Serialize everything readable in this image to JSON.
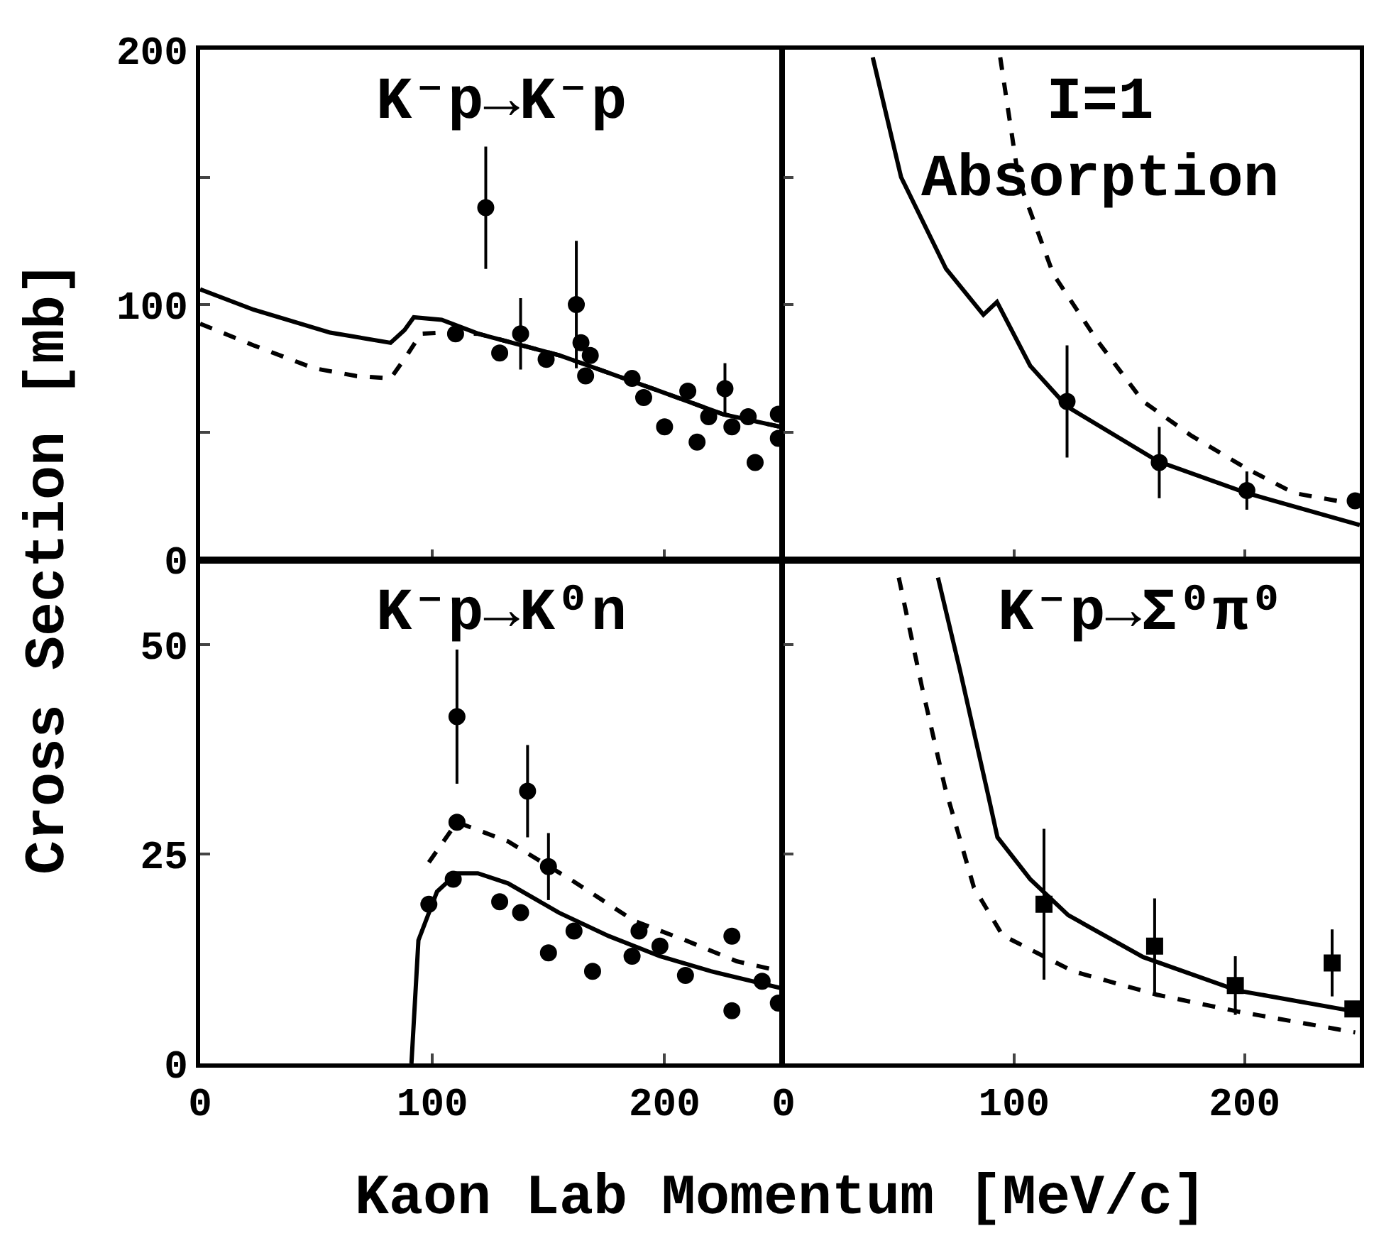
{
  "chart_data": [
    {
      "type": "line",
      "title": "K⁻p→K⁻p",
      "ylabel": "Cross Section [mb]",
      "xlim": [
        0,
        250
      ],
      "xticks": [
        0,
        100,
        200
      ],
      "ylim": [
        0,
        200
      ],
      "yticks": [
        0,
        {
          "value": 50,
          "label": null
        },
        100,
        {
          "value": 150,
          "label": null
        },
        200
      ],
      "tick_labels": "y",
      "series": [
        {
          "line_style": "solid",
          "marker": "none",
          "color": "#000000",
          "x": [
            0,
            23,
            56,
            82,
            88,
            92,
            104,
            120,
            155,
            198,
            225,
            250
          ],
          "values": [
            106,
            98,
            89,
            85,
            90,
            95,
            94,
            88.5,
            80,
            66,
            57,
            52
          ]
        },
        {
          "line_style": "dashed",
          "marker": "none",
          "color": "#000000",
          "x": [
            0,
            23,
            49,
            67,
            82,
            89,
            95,
            104,
            120,
            155,
            198,
            225,
            250
          ],
          "values": [
            92.5,
            84,
            75,
            72,
            71,
            80,
            88.5,
            89,
            88.5,
            80,
            66,
            57,
            52
          ]
        },
        {
          "type": "scatter",
          "marker": "circle",
          "color": "#000000",
          "x": [
            123,
            110,
            129,
            138,
            149,
            162,
            164,
            168,
            166,
            186,
            191,
            200,
            210,
            214,
            219,
            226,
            229,
            236,
            239,
            249,
            249
          ],
          "values": [
            138,
            88.5,
            81,
            88.5,
            78.5,
            100,
            85,
            80,
            72,
            71,
            63.5,
            52,
            66,
            46,
            56,
            67,
            52,
            56,
            38,
            57,
            47.5
          ],
          "errors": [
            24,
            null,
            null,
            14,
            null,
            25,
            null,
            null,
            null,
            null,
            null,
            null,
            null,
            null,
            null,
            10,
            null,
            null,
            null,
            null,
            null
          ]
        }
      ]
    },
    {
      "type": "line",
      "title": "I=1\nAbsorption",
      "xlim": [
        0,
        250
      ],
      "xticks": [
        0,
        100,
        200
      ],
      "ylim": [
        0,
        200
      ],
      "yticks": [
        {
          "value": 0,
          "label": null
        },
        {
          "value": 50,
          "label": null
        },
        {
          "value": 100,
          "label": null
        },
        {
          "value": 150,
          "label": null
        },
        {
          "value": 200,
          "label": null
        }
      ],
      "tick_labels": false,
      "series": [
        {
          "line_style": "solid",
          "marker": "none",
          "color": "#000000",
          "x": [
            38.7,
            51,
            70.5,
            86.7,
            92.6,
            107,
            123,
            162.6,
            201,
            250
          ],
          "values": [
            197,
            150,
            114,
            96,
            101,
            76,
            60,
            38.4,
            26,
            13.5
          ]
        },
        {
          "line_style": "dashed",
          "marker": "none",
          "color": "#000000",
          "x": [
            94,
            102,
            117,
            136,
            156,
            177,
            201,
            221.5,
            248
          ],
          "values": [
            197,
            149,
            112,
            86,
            62,
            48.5,
            35.6,
            26,
            21.7
          ]
        },
        {
          "type": "scatter",
          "marker": "circle",
          "color": "#000000",
          "x": [
            123,
            163,
            201,
            248
          ],
          "values": [
            62,
            38,
            27,
            23
          ],
          "errors": [
            22,
            14,
            7.5,
            null
          ]
        }
      ]
    },
    {
      "type": "line",
      "title": "K⁻p→K⁰n",
      "xlabel": "Kaon Lab Momentum [MeV/c]",
      "xlim": [
        0,
        250
      ],
      "xticks": [
        0,
        100,
        200
      ],
      "ylim": [
        0,
        60
      ],
      "yticks": [
        0,
        25,
        50
      ],
      "series": [
        {
          "line_style": "solid",
          "marker": "none",
          "color": "#000000",
          "x": [
            91,
            94,
            102,
            110.6,
            119.6,
            132.6,
            154.5,
            176,
            198,
            220,
            250
          ],
          "values": [
            0,
            14.7,
            20.5,
            22.7,
            22.7,
            21.5,
            18,
            15.2,
            12.8,
            11,
            9
          ]
        },
        {
          "line_style": "dashed",
          "marker": "none",
          "color": "#000000",
          "x": [
            98.5,
            110.6,
            132.6,
            161,
            187,
            209,
            231,
            250
          ],
          "values": [
            24,
            28.8,
            26.5,
            21.7,
            17,
            14.7,
            12.2,
            11
          ]
        },
        {
          "type": "scatter",
          "marker": "circle",
          "color": "#000000",
          "x": [
            110.6,
            110.6,
            109,
            98.5,
            141,
            150,
            129,
            138,
            150,
            161,
            169,
            186,
            189,
            209,
            229,
            229,
            242,
            249,
            198
          ],
          "values": [
            41.4,
            28.8,
            22,
            19,
            32.5,
            23.5,
            19.3,
            18,
            13.2,
            15.8,
            11,
            12.8,
            15.8,
            10.5,
            15.2,
            6.3,
            9.8,
            7.2,
            14
          ],
          "errors": [
            8,
            null,
            null,
            null,
            5.5,
            4,
            null,
            null,
            null,
            null,
            null,
            null,
            null,
            null,
            null,
            null,
            null,
            null,
            null
          ]
        }
      ]
    },
    {
      "type": "line",
      "title": "K⁻p→Σ⁰π⁰",
      "xlim": [
        0,
        250
      ],
      "xticks": [
        0,
        100,
        200
      ],
      "ylim": [
        0,
        60
      ],
      "yticks": [
        {
          "value": 0,
          "label": null
        },
        {
          "value": 25,
          "label": null
        },
        {
          "value": 50,
          "label": null
        }
      ],
      "tick_labels": "x",
      "series": [
        {
          "line_style": "solid",
          "marker": "none",
          "color": "#000000",
          "x": [
            67,
            76.5,
            88.8,
            92.8,
            107,
            123.5,
            156,
            197,
            248
          ],
          "values": [
            58,
            47,
            32,
            27,
            22,
            17.7,
            12.7,
            8.7,
            6.2
          ]
        },
        {
          "line_style": "dashed",
          "marker": "none",
          "color": "#000000",
          "x": [
            50,
            60,
            70,
            82.6,
            95,
            125.6,
            162,
            197,
            248
          ],
          "values": [
            58,
            45,
            33,
            21,
            15.3,
            11,
            8.2,
            6.2,
            3.7
          ]
        },
        {
          "type": "scatter",
          "marker": "square",
          "color": "#000000",
          "x": [
            113,
            161,
            196,
            238,
            247
          ],
          "values": [
            19,
            14,
            9.3,
            12,
            6.5
          ],
          "errors": [
            9,
            5.7,
            3.5,
            4,
            null
          ]
        }
      ]
    }
  ]
}
